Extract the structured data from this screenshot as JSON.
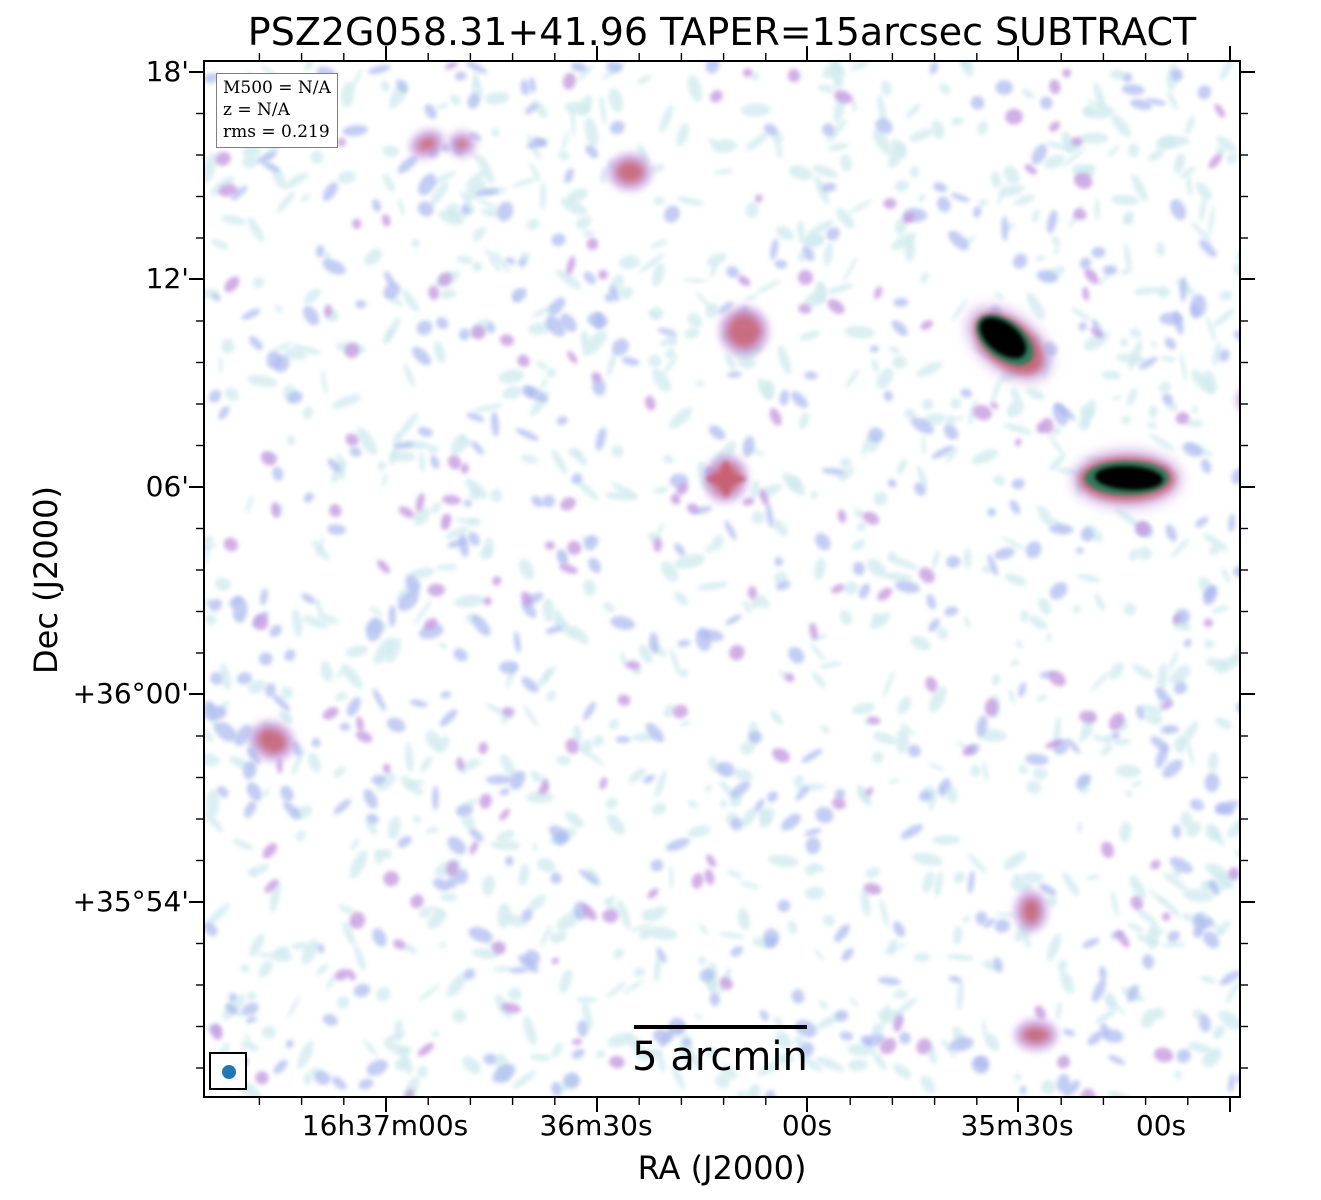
{
  "title": "PSZ2G058.31+41.96 TAPER=15arcsec SUBTRACT",
  "xaxis": {
    "label": "RA (J2000)",
    "tick_labels": [
      "16h37m00s",
      "36m30s",
      "00s",
      "35m30s",
      "00s"
    ]
  },
  "yaxis": {
    "label": "Dec (J2000)",
    "tick_labels": [
      "18'",
      "12'",
      "06'",
      "+36°00'",
      "+35°54'"
    ]
  },
  "info": {
    "m500": "M500 = N/A",
    "z": "z = N/A",
    "rms": "rms = 0.219"
  },
  "scalebar": {
    "label": "5 arcmin"
  },
  "beam": {
    "color": "#1f77b4"
  },
  "colors": {
    "noise_light": "#cfe9ee",
    "noise_mid": "#a9b8ef",
    "noise_purple": "#c69be0",
    "source_red": "#c86070",
    "source_dark": "#000000",
    "source_rim": "#2f7a5a"
  }
}
